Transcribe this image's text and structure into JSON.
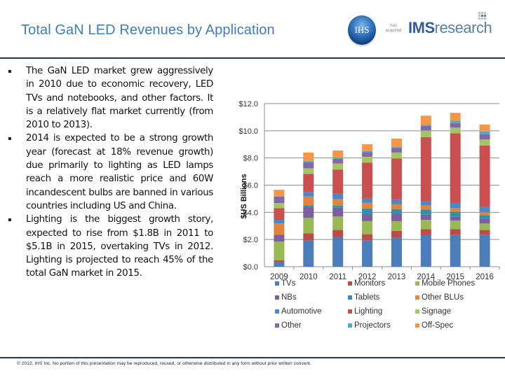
{
  "header": {
    "title": "Total GaN LED Revenues by Application",
    "logo_ihs": "IHS",
    "logo_acquired": "has acquired",
    "logo_ims_bold": "IMS",
    "logo_ims_rest": "research"
  },
  "bullets": [
    "The GaN LED market grew aggressively in 2010 due to economic recovery, LED TVs and notebooks, and other factors. It is a relatively flat market currently (from 2010 to 2013).",
    "2014 is expected to be a strong growth year (forecast at 18% revenue growth) due primarily to lighting as LED lamps reach a more realistic price and 60W incandescent bulbs are banned in various countries including US and China.",
    "Lighting is the biggest growth story, expected to rise from $1.8B in 2011 to $5.1B in 2015, overtaking TVs in 2012. Lighting is projected to reach 45% of the total GaN market in 2015."
  ],
  "footer": "© 2012. IHS Inc. No portion of this presentation may be reproduced, reused, or otherwise distributed in any form without prior written consent.",
  "chart_data": {
    "type": "bar",
    "stacked": true,
    "title": "",
    "xlabel": "",
    "ylabel": "$US Billions",
    "ylim": [
      0,
      12
    ],
    "yticks": [
      0,
      2,
      4,
      6,
      8,
      10,
      12
    ],
    "ytick_labels": [
      "$0.0",
      "$2.0",
      "$4.0",
      "$6.0",
      "$8.0",
      "$10.0",
      "$12.0"
    ],
    "grid": true,
    "legend_position": "bottom",
    "categories": [
      "2009",
      "2010",
      "2011",
      "2012",
      "2013",
      "2014",
      "2015",
      "2016"
    ],
    "series": [
      {
        "name": "TVs",
        "color": "#4A7DBA",
        "values": [
          0.34,
          1.95,
          2.19,
          1.95,
          2.12,
          2.32,
          2.36,
          2.36
        ]
      },
      {
        "name": "Monitors",
        "color": "#BE4B48",
        "values": [
          0.14,
          0.51,
          0.51,
          0.44,
          0.51,
          0.44,
          0.41,
          0.34
        ]
      },
      {
        "name": "Mobile Phones",
        "color": "#98B954",
        "values": [
          1.37,
          1.13,
          0.99,
          0.96,
          0.72,
          0.68,
          0.62,
          0.48
        ]
      },
      {
        "name": "NBs",
        "color": "#7D5FA0",
        "values": [
          0.51,
          0.82,
          0.65,
          0.51,
          0.51,
          0.38,
          0.31,
          0.34
        ]
      },
      {
        "name": "Tablets",
        "color": "#2F91AB",
        "values": [
          0.0,
          0.1,
          0.14,
          0.41,
          0.38,
          0.38,
          0.34,
          0.27
        ]
      },
      {
        "name": "Other BLUs",
        "color": "#E2843C",
        "values": [
          0.82,
          0.65,
          0.48,
          0.44,
          0.34,
          0.31,
          0.27,
          0.21
        ]
      },
      {
        "name": "Automotive",
        "color": "#4F86C6",
        "values": [
          0.27,
          0.34,
          0.41,
          0.34,
          0.38,
          0.31,
          0.38,
          0.41
        ]
      },
      {
        "name": "Lighting",
        "color": "#C9504E",
        "values": [
          0.85,
          1.33,
          1.78,
          2.6,
          3.0,
          4.72,
          5.13,
          4.51
        ]
      },
      {
        "name": "Signage",
        "color": "#A5C464",
        "values": [
          0.38,
          0.41,
          0.44,
          0.44,
          0.44,
          0.48,
          0.41,
          0.44
        ]
      },
      {
        "name": "Other",
        "color": "#8467A8",
        "values": [
          0.48,
          0.44,
          0.34,
          0.34,
          0.34,
          0.34,
          0.34,
          0.38
        ]
      },
      {
        "name": "Projectors",
        "color": "#4BACC6",
        "values": [
          0.02,
          0.1,
          0.07,
          0.07,
          0.07,
          0.07,
          0.17,
          0.21
        ]
      },
      {
        "name": "Off-Spec",
        "color": "#F79646",
        "values": [
          0.48,
          0.62,
          0.55,
          0.51,
          0.62,
          0.68,
          0.58,
          0.51
        ]
      }
    ]
  }
}
